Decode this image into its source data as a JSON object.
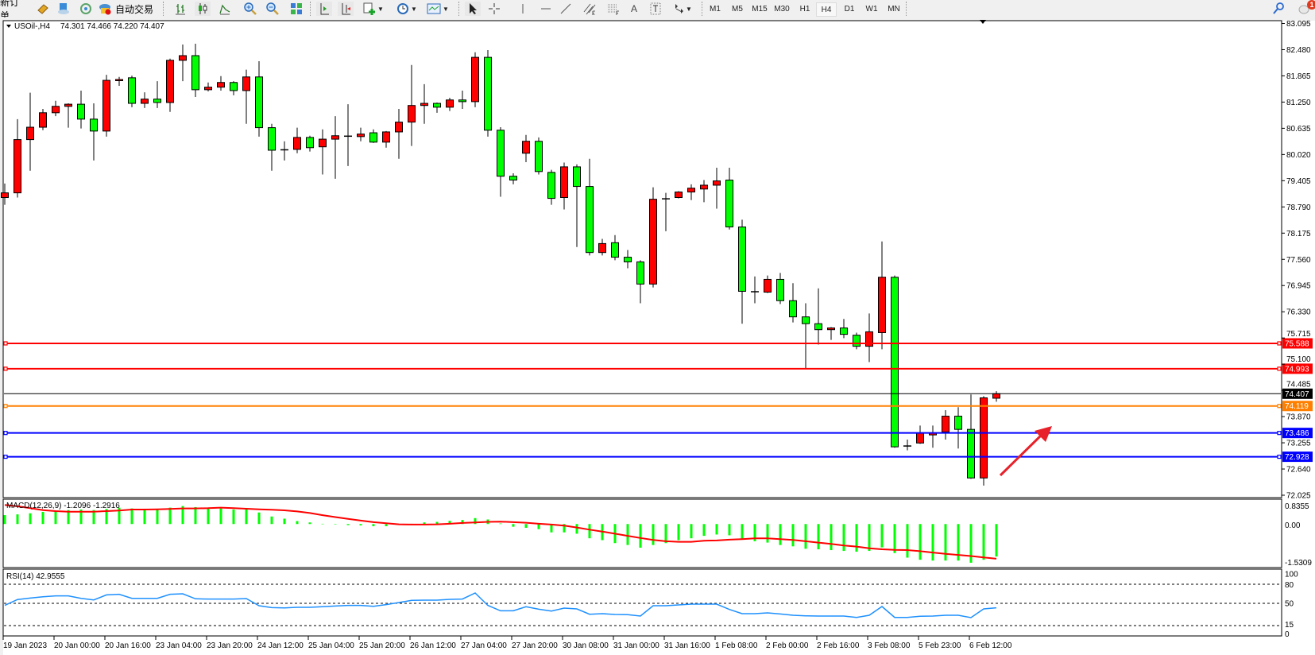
{
  "toolbar": {
    "new_order_label": "新订单",
    "auto_trading_label": "自动交易",
    "timeframes": [
      "M1",
      "M5",
      "M15",
      "M30",
      "H1",
      "H4",
      "D1",
      "W1",
      "MN"
    ],
    "active_timeframe": "H4",
    "notification_count": "1",
    "text_tool_label": "A"
  },
  "chart": {
    "symbol": "USOil-,H4",
    "ohlc_readout": "74.301 74.466 74.220 74.407",
    "macd_label": "MACD(12,26,9) -1.2096 -1.2916",
    "rsi_label": "RSI(14) 42.9555"
  },
  "colors": {
    "bull_candle": "#ff0000",
    "bear_candle": "#00ff00",
    "macd_histogram": "#00ff00",
    "macd_signal": "#ff0000",
    "rsi_line": "#1e90ff",
    "arrow": "#e8202a"
  },
  "chart_data": [
    {
      "type": "candlestick",
      "timeframe": "H4",
      "ylim": [
        72.025,
        83.095
      ],
      "y_ticks": [
        "83.095",
        "82.480",
        "81.865",
        "81.250",
        "80.635",
        "80.020",
        "79.405",
        "78.790",
        "78.175",
        "77.560",
        "76.945",
        "76.330",
        "75.715",
        "75.100",
        "74.485",
        "73.870",
        "73.255",
        "72.640",
        "72.025"
      ],
      "x_tick_labels": [
        {
          "label": "19 Jan 2023",
          "bar": 1
        },
        {
          "label": "20 Jan 00:00",
          "bar": 5
        },
        {
          "label": "20 Jan 16:00",
          "bar": 9
        },
        {
          "label": "23 Jan 04:00",
          "bar": 13
        },
        {
          "label": "23 Jan 20:00",
          "bar": 17
        },
        {
          "label": "24 Jan 12:00",
          "bar": 21
        },
        {
          "label": "25 Jan 04:00",
          "bar": 25
        },
        {
          "label": "25 Jan 20:00",
          "bar": 29
        },
        {
          "label": "26 Jan 12:00",
          "bar": 33
        },
        {
          "label": "27 Jan 04:00",
          "bar": 37
        },
        {
          "label": "27 Jan 20:00",
          "bar": 41
        },
        {
          "label": "30 Jan 08:00",
          "bar": 45
        },
        {
          "label": "31 Jan 00:00",
          "bar": 49
        },
        {
          "label": "31 Jan 16:00",
          "bar": 53
        },
        {
          "label": "1 Feb 08:00",
          "bar": 57
        },
        {
          "label": "2 Feb 00:00",
          "bar": 61
        },
        {
          "label": "2 Feb 16:00",
          "bar": 65
        },
        {
          "label": "3 Feb 08:00",
          "bar": 69
        },
        {
          "label": "5 Feb 23:00",
          "bar": 73
        },
        {
          "label": "6 Feb 12:00",
          "bar": 77
        }
      ],
      "ohlc": [
        [
          79.01,
          79.34,
          78.84,
          79.12
        ],
        [
          79.12,
          80.85,
          79.01,
          80.37
        ],
        [
          80.37,
          81.47,
          79.64,
          80.66
        ],
        [
          80.66,
          81.09,
          80.59,
          81.0
        ],
        [
          81.0,
          81.28,
          80.92,
          81.15
        ],
        [
          81.15,
          81.22,
          80.65,
          81.2
        ],
        [
          81.2,
          81.52,
          80.63,
          80.85
        ],
        [
          80.85,
          81.22,
          79.88,
          80.57
        ],
        [
          80.57,
          81.89,
          80.44,
          81.76
        ],
        [
          81.76,
          81.84,
          81.63,
          81.78
        ],
        [
          81.82,
          81.87,
          81.13,
          81.22
        ],
        [
          81.22,
          81.48,
          81.11,
          81.32
        ],
        [
          81.32,
          81.74,
          81.11,
          81.24
        ],
        [
          81.24,
          82.27,
          81.02,
          82.23
        ],
        [
          82.23,
          82.6,
          81.74,
          82.34
        ],
        [
          82.34,
          82.62,
          81.37,
          81.54
        ],
        [
          81.54,
          81.71,
          81.5,
          81.6
        ],
        [
          81.6,
          81.86,
          81.52,
          81.71
        ],
        [
          81.71,
          81.74,
          81.41,
          81.52
        ],
        [
          81.52,
          82.01,
          80.74,
          81.84
        ],
        [
          81.84,
          82.21,
          80.44,
          80.65
        ],
        [
          80.65,
          80.74,
          79.64,
          80.12
        ],
        [
          80.13,
          80.33,
          79.88,
          80.13
        ],
        [
          80.14,
          80.65,
          80.05,
          80.42
        ],
        [
          80.42,
          80.46,
          80.09,
          80.18
        ],
        [
          80.2,
          80.61,
          79.55,
          80.38
        ],
        [
          80.38,
          80.92,
          79.45,
          80.46
        ],
        [
          80.45,
          81.2,
          79.75,
          80.45
        ],
        [
          80.44,
          80.65,
          80.33,
          80.5
        ],
        [
          80.53,
          80.61,
          80.29,
          80.31
        ],
        [
          80.31,
          80.57,
          80.18,
          80.55
        ],
        [
          80.55,
          81.09,
          79.92,
          80.78
        ],
        [
          80.78,
          82.12,
          80.22,
          81.17
        ],
        [
          81.17,
          81.67,
          80.74,
          81.22
        ],
        [
          81.22,
          81.24,
          81.0,
          81.13
        ],
        [
          81.13,
          81.35,
          81.04,
          81.3
        ],
        [
          81.3,
          81.52,
          81.09,
          81.26
        ],
        [
          81.26,
          82.42,
          81.13,
          82.3
        ],
        [
          82.3,
          82.47,
          80.44,
          80.59
        ],
        [
          80.59,
          80.66,
          79.03,
          79.51
        ],
        [
          79.51,
          79.58,
          79.32,
          79.42
        ],
        [
          80.05,
          80.48,
          79.84,
          80.33
        ],
        [
          80.33,
          80.42,
          79.55,
          79.62
        ],
        [
          79.6,
          79.66,
          78.84,
          78.99
        ],
        [
          79.01,
          79.83,
          78.73,
          79.73
        ],
        [
          79.73,
          79.79,
          77.85,
          79.27
        ],
        [
          79.27,
          79.92,
          77.65,
          77.72
        ],
        [
          77.72,
          78.04,
          77.65,
          77.93
        ],
        [
          77.95,
          78.13,
          77.54,
          77.61
        ],
        [
          77.61,
          77.78,
          77.35,
          77.5
        ],
        [
          77.5,
          77.54,
          76.53,
          76.98
        ],
        [
          76.98,
          79.25,
          76.9,
          78.97
        ],
        [
          78.98,
          79.12,
          78.22,
          78.98
        ],
        [
          79.01,
          79.16,
          78.99,
          79.14
        ],
        [
          79.14,
          79.32,
          78.95,
          79.23
        ],
        [
          79.21,
          79.42,
          78.9,
          79.3
        ],
        [
          79.3,
          79.71,
          78.75,
          79.4
        ],
        [
          79.42,
          79.71,
          78.26,
          78.32
        ],
        [
          78.32,
          78.49,
          76.05,
          76.81
        ],
        [
          76.8,
          77.16,
          76.53,
          76.8
        ],
        [
          76.79,
          77.18,
          76.77,
          77.09
        ],
        [
          77.09,
          77.24,
          76.51,
          76.59
        ],
        [
          76.59,
          77.0,
          76.08,
          76.21
        ],
        [
          76.21,
          76.53,
          75.0,
          76.05
        ],
        [
          76.05,
          76.88,
          75.56,
          75.91
        ],
        [
          75.91,
          75.97,
          75.67,
          75.95
        ],
        [
          75.95,
          76.16,
          75.71,
          75.8
        ],
        [
          75.78,
          75.84,
          75.45,
          75.52
        ],
        [
          75.52,
          76.29,
          75.15,
          75.86
        ],
        [
          75.84,
          77.98,
          75.45,
          77.14
        ],
        [
          77.14,
          77.18,
          73.14,
          73.16
        ],
        [
          73.18,
          73.33,
          73.08,
          73.18
        ],
        [
          73.25,
          73.66,
          73.23,
          73.48
        ],
        [
          73.44,
          73.66,
          73.14,
          73.48
        ],
        [
          73.51,
          74.02,
          73.33,
          73.88
        ],
        [
          73.88,
          74.09,
          73.12,
          73.57
        ],
        [
          73.57,
          74.39,
          72.41,
          72.43
        ],
        [
          72.43,
          74.35,
          72.25,
          74.31
        ],
        [
          74.301,
          74.466,
          74.22,
          74.407
        ]
      ],
      "levels": [
        {
          "price": "75.588",
          "color": "#ff0000",
          "kind": "horizontal-line"
        },
        {
          "price": "74.993",
          "color": "#ff0000",
          "kind": "horizontal-line"
        },
        {
          "price": "74.407",
          "color": "#000000",
          "kind": "bid-line"
        },
        {
          "price": "74.119",
          "color": "#ff8000",
          "kind": "horizontal-line"
        },
        {
          "price": "73.486",
          "color": "#0000ff",
          "kind": "horizontal-line"
        },
        {
          "price": "72.928",
          "color": "#0000ff",
          "kind": "horizontal-line"
        }
      ]
    },
    {
      "type": "bar",
      "indicator": "MACD(12,26,9)",
      "ylim": [
        -1.5309,
        0.8355
      ],
      "y_ticks": [
        "0.8355",
        "0.00",
        "-1.5309"
      ],
      "histogram": [
        0.33,
        0.36,
        0.4,
        0.45,
        0.5,
        0.52,
        0.54,
        0.52,
        0.56,
        0.61,
        0.58,
        0.57,
        0.54,
        0.61,
        0.67,
        0.63,
        0.61,
        0.58,
        0.54,
        0.54,
        0.43,
        0.28,
        0.2,
        0.11,
        0.06,
        0.01,
        -0.01,
        -0.04,
        -0.05,
        -0.08,
        -0.08,
        0.0,
        0.01,
        0.06,
        0.08,
        0.12,
        0.15,
        0.22,
        0.17,
        0.02,
        -0.1,
        -0.14,
        -0.19,
        -0.31,
        -0.31,
        -0.36,
        -0.53,
        -0.6,
        -0.71,
        -0.78,
        -0.88,
        -0.78,
        -0.71,
        -0.6,
        -0.53,
        -0.44,
        -0.39,
        -0.42,
        -0.55,
        -0.64,
        -0.69,
        -0.78,
        -0.83,
        -0.92,
        -0.94,
        -0.97,
        -1.0,
        -1.03,
        -1.0,
        -0.87,
        -1.08,
        -1.25,
        -1.33,
        -1.36,
        -1.36,
        -1.36,
        -1.44,
        -1.33,
        -1.2096
      ],
      "signal": [
        0.71,
        0.66,
        0.59,
        0.52,
        0.48,
        0.46,
        0.46,
        0.46,
        0.48,
        0.5,
        0.54,
        0.54,
        0.55,
        0.56,
        0.58,
        0.58,
        0.59,
        0.61,
        0.59,
        0.57,
        0.55,
        0.53,
        0.51,
        0.47,
        0.41,
        0.33,
        0.26,
        0.19,
        0.13,
        0.07,
        0.03,
        -0.01,
        -0.02,
        -0.02,
        -0.01,
        0.01,
        0.04,
        0.06,
        0.08,
        0.09,
        0.07,
        0.05,
        0.01,
        -0.02,
        -0.06,
        -0.13,
        -0.21,
        -0.28,
        -0.36,
        -0.44,
        -0.52,
        -0.59,
        -0.64,
        -0.66,
        -0.66,
        -0.62,
        -0.61,
        -0.58,
        -0.56,
        -0.53,
        -0.53,
        -0.56,
        -0.59,
        -0.64,
        -0.69,
        -0.74,
        -0.8,
        -0.84,
        -0.9,
        -0.94,
        -0.96,
        -0.97,
        -1.01,
        -1.06,
        -1.11,
        -1.15,
        -1.19,
        -1.24,
        -1.2916
      ]
    },
    {
      "type": "line",
      "indicator": "RSI(14)",
      "ylim": [
        0,
        100
      ],
      "y_ticks": [
        "100",
        "80",
        "50",
        "15",
        "0"
      ],
      "levels": [
        80,
        50,
        15
      ],
      "values": [
        46.7,
        56,
        58.3,
        60.4,
        61.7,
        61.7,
        57.9,
        55.4,
        63.3,
        64.2,
        57.9,
        57.9,
        57.9,
        64.2,
        65,
        57.1,
        56.7,
        56.7,
        56.7,
        57.5,
        46.3,
        43.3,
        42.9,
        43.8,
        43.8,
        44.6,
        45.8,
        46.7,
        46.7,
        45.4,
        48,
        51.3,
        54.6,
        55,
        55,
        56.3,
        56.7,
        66.3,
        46.7,
        38.3,
        38.3,
        44.6,
        40.8,
        37.9,
        42.5,
        41.3,
        32.9,
        33.8,
        32.5,
        32.1,
        30,
        46.3,
        46.3,
        47.5,
        48.8,
        48.8,
        48.8,
        40.4,
        33.8,
        33.8,
        35,
        33.3,
        31.3,
        30.4,
        30,
        30,
        30,
        27.9,
        31.3,
        45,
        27.9,
        27.9,
        29.6,
        30,
        31.3,
        31.3,
        27.5,
        41.3,
        42.96
      ]
    }
  ]
}
